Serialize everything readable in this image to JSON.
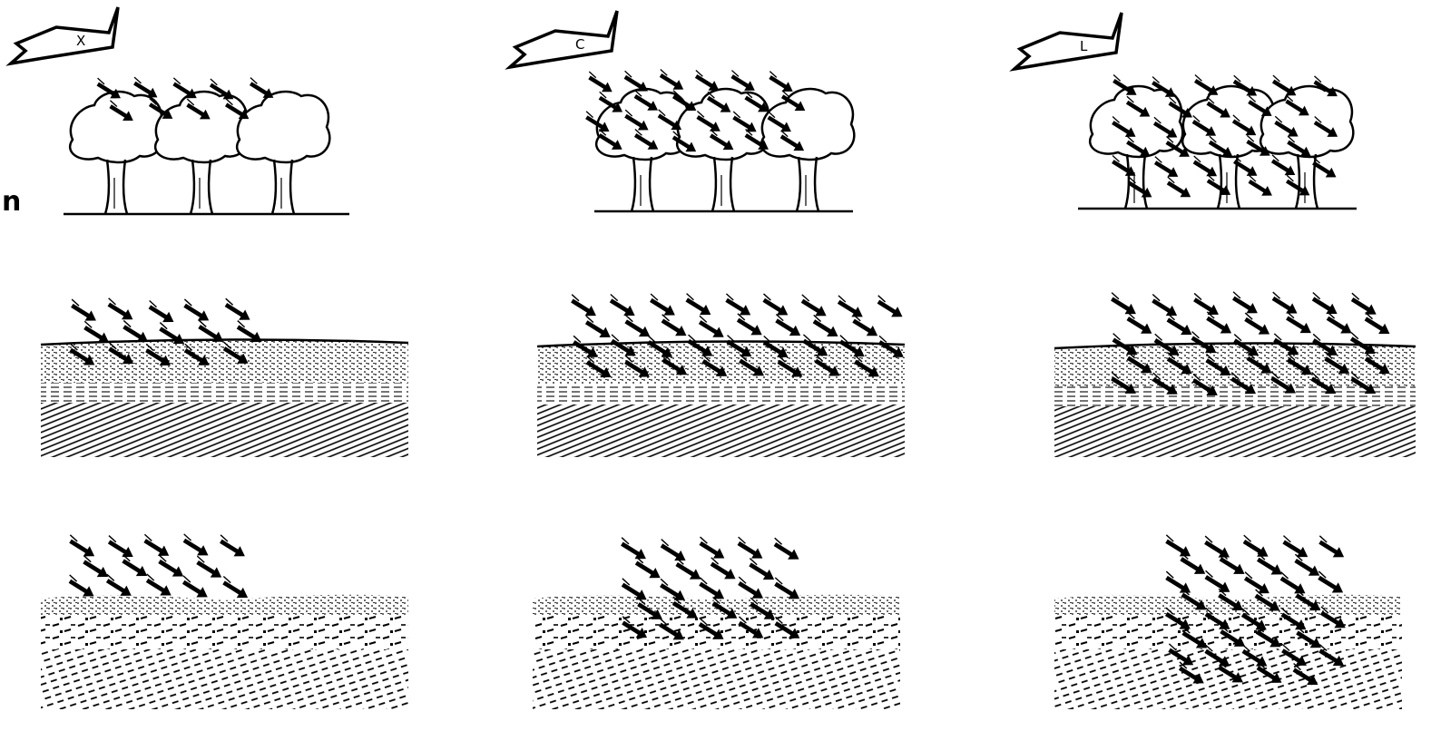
{
  "diagram": {
    "ink_color": "#000000",
    "background_color": "#ffffff",
    "side_letter": "n",
    "columns": [
      {
        "label": "X"
      },
      {
        "label": "C"
      },
      {
        "label": "L"
      }
    ],
    "rows": [
      {
        "kind": "tree-canopy"
      },
      {
        "kind": "soil-layers"
      },
      {
        "kind": "crusted-soil"
      }
    ],
    "symbols": {
      "wind_flag": "pennant-sign-icon",
      "wind_particle": "wind-arrow-icon",
      "tree": "tree-icon"
    }
  }
}
